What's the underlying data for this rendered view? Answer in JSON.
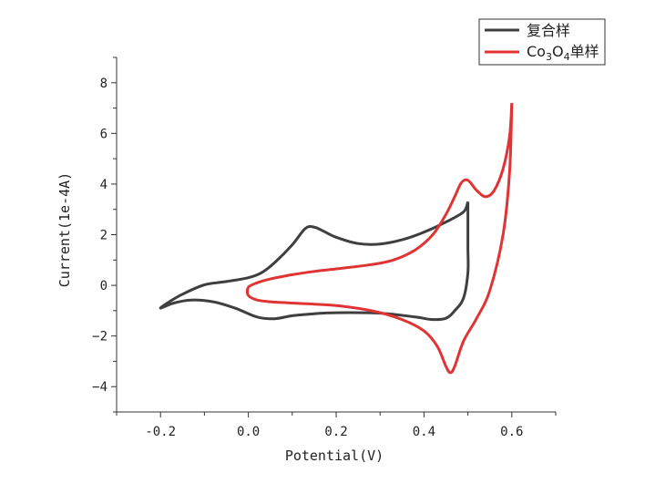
{
  "chart_data": {
    "type": "line",
    "title": "",
    "xlabel": "Potential(V)",
    "ylabel": "Current(1e-4A)",
    "xlim": [
      -0.3,
      0.7
    ],
    "ylim": [
      -5,
      9
    ],
    "x_ticks": [
      -0.2,
      0.0,
      0.2,
      0.4,
      0.6
    ],
    "x_tick_labels": [
      "-0.2",
      "0.0",
      "0.2",
      "0.4",
      "0.6"
    ],
    "y_ticks": [
      -4,
      -2,
      0,
      2,
      4,
      6,
      8
    ],
    "y_tick_labels": [
      "−4",
      "−2",
      "0",
      "2",
      "4",
      "6",
      "8"
    ],
    "grid": false,
    "legend_position": "top-right",
    "series": [
      {
        "name": "复合样",
        "color": "#3f3f3f",
        "points": [
          [
            0.5,
            3.3
          ],
          [
            0.49,
            2.9
          ],
          [
            0.45,
            2.5
          ],
          [
            0.4,
            2.1
          ],
          [
            0.35,
            1.8
          ],
          [
            0.3,
            1.63
          ],
          [
            0.25,
            1.65
          ],
          [
            0.2,
            1.9
          ],
          [
            0.17,
            2.15
          ],
          [
            0.15,
            2.3
          ],
          [
            0.13,
            2.25
          ],
          [
            0.1,
            1.6
          ],
          [
            0.06,
            0.9
          ],
          [
            0.03,
            0.5
          ],
          [
            0.0,
            0.3
          ],
          [
            -0.05,
            0.15
          ],
          [
            -0.1,
            0.02
          ],
          [
            -0.15,
            -0.35
          ],
          [
            -0.18,
            -0.65
          ],
          [
            -0.2,
            -0.9
          ],
          [
            -0.17,
            -0.7
          ],
          [
            -0.13,
            -0.58
          ],
          [
            -0.08,
            -0.65
          ],
          [
            -0.03,
            -0.9
          ],
          [
            0.02,
            -1.25
          ],
          [
            0.06,
            -1.32
          ],
          [
            0.1,
            -1.2
          ],
          [
            0.15,
            -1.12
          ],
          [
            0.2,
            -1.08
          ],
          [
            0.3,
            -1.1
          ],
          [
            0.38,
            -1.25
          ],
          [
            0.42,
            -1.35
          ],
          [
            0.45,
            -1.3
          ],
          [
            0.47,
            -1.0
          ],
          [
            0.49,
            -0.5
          ],
          [
            0.5,
            0.5
          ],
          [
            0.5,
            1.5
          ],
          [
            0.5,
            2.5
          ],
          [
            0.5,
            3.3
          ]
        ]
      },
      {
        "name": "Co3O4单样",
        "name_parts": [
          "Co",
          "3",
          "O",
          "4",
          "单样"
        ],
        "color": "#e03434",
        "points": [
          [
            0.6,
            7.2
          ],
          [
            0.595,
            5.9
          ],
          [
            0.58,
            4.6
          ],
          [
            0.56,
            3.75
          ],
          [
            0.54,
            3.5
          ],
          [
            0.52,
            3.75
          ],
          [
            0.5,
            4.15
          ],
          [
            0.485,
            4.05
          ],
          [
            0.47,
            3.5
          ],
          [
            0.45,
            2.8
          ],
          [
            0.42,
            2.0
          ],
          [
            0.38,
            1.4
          ],
          [
            0.33,
            1.0
          ],
          [
            0.28,
            0.82
          ],
          [
            0.2,
            0.65
          ],
          [
            0.15,
            0.55
          ],
          [
            0.1,
            0.42
          ],
          [
            0.05,
            0.25
          ],
          [
            0.02,
            0.1
          ],
          [
            0.0,
            -0.08
          ],
          [
            0.0,
            -0.4
          ],
          [
            0.02,
            -0.58
          ],
          [
            0.05,
            -0.65
          ],
          [
            0.1,
            -0.7
          ],
          [
            0.2,
            -0.8
          ],
          [
            0.28,
            -1.0
          ],
          [
            0.35,
            -1.35
          ],
          [
            0.4,
            -1.8
          ],
          [
            0.43,
            -2.4
          ],
          [
            0.45,
            -3.2
          ],
          [
            0.46,
            -3.45
          ],
          [
            0.47,
            -3.2
          ],
          [
            0.49,
            -2.2
          ],
          [
            0.52,
            -1.3
          ],
          [
            0.55,
            -0.2
          ],
          [
            0.58,
            2.0
          ],
          [
            0.595,
            4.5
          ],
          [
            0.6,
            7.2
          ]
        ]
      }
    ]
  },
  "colors": {
    "axis": "#333333",
    "series_1": "#3f3f3f",
    "series_2": "#e03434"
  }
}
